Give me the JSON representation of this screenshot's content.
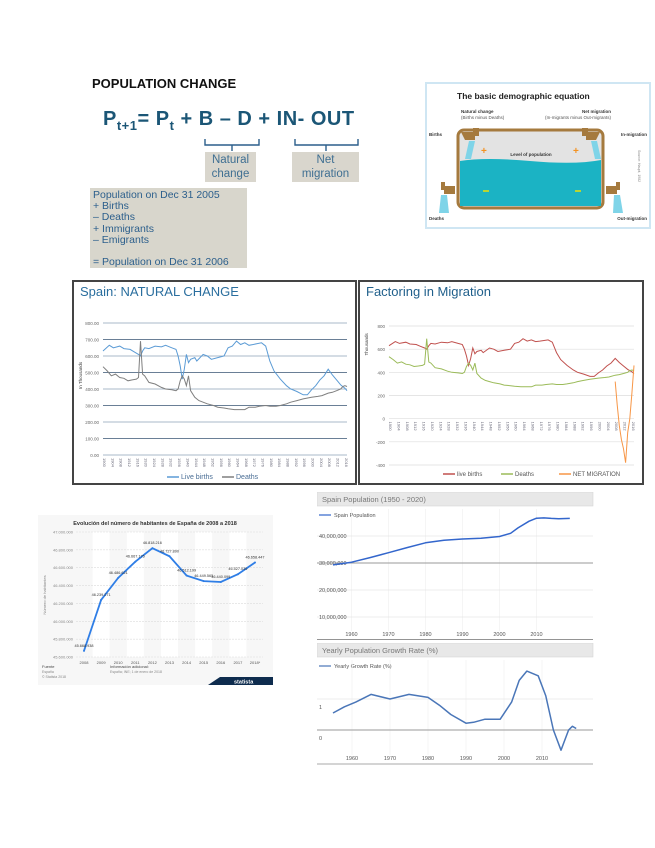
{
  "heading": "POPULATION CHANGE",
  "equation": {
    "p_next": "P",
    "sub_next": "t+1",
    "eq": "= ",
    "p_t": "P",
    "sub_t": "t",
    "rest": " + B – D + IN- OUT"
  },
  "labels": {
    "natural": [
      "Natural",
      "change"
    ],
    "net": [
      "Net",
      "migration"
    ]
  },
  "population_box": [
    "Population on Dec 31 2005",
    "+ Births",
    "– Deaths",
    "+ Immigrants",
    "– Emigrants",
    "",
    "= Population on Dec 31 2006"
  ],
  "demographic_figure": {
    "title": "The basic demographic equation",
    "natural_change": "Natural change",
    "natural_sub": "(Births minus Deaths)",
    "net_migration": "Net migration",
    "net_sub": "(In-migrants minus Out-migrants)",
    "births": "Births",
    "in_migration": "In-migration",
    "deaths": "Deaths",
    "out_migration": "Out-migration",
    "level": "Level of population",
    "source": "Source: Haupt, 1982",
    "colors": {
      "water": "#1bb3c4",
      "pipe": "#a57a3e",
      "plus": "#f39221",
      "minus": "#b6d534"
    }
  },
  "chart_data": [
    {
      "type": "line",
      "title": "Spain: NATURAL CHANGE",
      "ylabel": "In Thousands",
      "ylim": [
        0,
        800
      ],
      "yticks": [
        0,
        100,
        200,
        300,
        400,
        500,
        600,
        700,
        800
      ],
      "ytick_labels": [
        "0.00",
        "100.00",
        "200.00",
        "300.00",
        "400.00",
        "500.00",
        "600.00",
        "700.00",
        "800.00"
      ],
      "xlim": [
        1900,
        2017
      ],
      "xtick_labels": [
        "1900",
        "1904",
        "1908",
        "1912",
        "1916",
        "1920",
        "1924",
        "1928",
        "1932",
        "1936",
        "1940",
        "1944",
        "1948",
        "1952",
        "1956",
        "1960",
        "1964",
        "1968",
        "1972",
        "1976",
        "1980",
        "1984",
        "1988",
        "1992",
        "1996",
        "2000",
        "2004",
        "2008",
        "2012",
        "2016"
      ],
      "grid": true,
      "legend": "bottom",
      "series": [
        {
          "name": "Live births",
          "color": "#5b9bd5",
          "x": [
            1900,
            1903,
            1905,
            1908,
            1910,
            1913,
            1915,
            1917,
            1918,
            1919,
            1920,
            1922,
            1925,
            1928,
            1930,
            1933,
            1935,
            1936,
            1937,
            1938,
            1939,
            1940,
            1941,
            1942,
            1944,
            1945,
            1948,
            1950,
            1952,
            1955,
            1958,
            1960,
            1962,
            1964,
            1966,
            1968,
            1970,
            1972,
            1974,
            1976,
            1978,
            1980,
            1982,
            1985,
            1988,
            1990,
            1993,
            1996,
            1998,
            2000,
            2002,
            2004,
            2006,
            2008,
            2010,
            2012,
            2014,
            2016,
            2017
          ],
          "y": [
            630,
            665,
            650,
            660,
            645,
            640,
            625,
            610,
            600,
            630,
            650,
            645,
            660,
            655,
            665,
            650,
            640,
            600,
            540,
            460,
            520,
            610,
            560,
            580,
            590,
            570,
            610,
            600,
            580,
            590,
            600,
            650,
            660,
            690,
            670,
            680,
            665,
            670,
            675,
            680,
            660,
            570,
            510,
            460,
            420,
            400,
            385,
            365,
            365,
            395,
            420,
            455,
            480,
            520,
            485,
            455,
            425,
            405,
            390
          ]
        },
        {
          "name": "Deaths",
          "color": "#7f7f7f",
          "x": [
            1900,
            1902,
            1904,
            1906,
            1908,
            1910,
            1912,
            1914,
            1916,
            1917,
            1918,
            1919,
            1920,
            1922,
            1925,
            1928,
            1930,
            1933,
            1935,
            1936,
            1937,
            1938,
            1939,
            1940,
            1941,
            1942,
            1944,
            1946,
            1948,
            1950,
            1953,
            1955,
            1958,
            1960,
            1963,
            1965,
            1968,
            1970,
            1973,
            1975,
            1978,
            1980,
            1983,
            1985,
            1988,
            1990,
            1993,
            1996,
            2000,
            2003,
            2005,
            2008,
            2010,
            2012,
            2014,
            2015,
            2016,
            2017
          ],
          "y": [
            535,
            510,
            480,
            490,
            470,
            465,
            450,
            455,
            460,
            470,
            690,
            490,
            480,
            440,
            430,
            410,
            400,
            395,
            390,
            400,
            450,
            480,
            460,
            420,
            480,
            390,
            350,
            330,
            320,
            310,
            300,
            290,
            285,
            280,
            275,
            275,
            275,
            290,
            290,
            295,
            300,
            295,
            295,
            300,
            310,
            320,
            330,
            340,
            350,
            355,
            360,
            375,
            380,
            390,
            400,
            415,
            420,
            415
          ]
        },
        {
          "name": "",
          "color": "#7f7f7f",
          "x": [],
          "y": []
        }
      ]
    },
    {
      "type": "line",
      "title": "Factoring in Migration",
      "ylabel": "Thousands",
      "ylim": [
        -400,
        800
      ],
      "yticks": [
        -400,
        -200,
        0,
        200,
        400,
        600,
        800
      ],
      "ytick_labels": [
        "-400",
        "-200",
        "0",
        "200",
        "400",
        "600",
        "800"
      ],
      "xlim": [
        1900,
        2017
      ],
      "xtick_labels": [
        "1900",
        "1904",
        "1908",
        "1912",
        "1916",
        "1920",
        "1924",
        "1928",
        "1932",
        "1936",
        "1940",
        "1944",
        "1948",
        "1952",
        "1956",
        "1960",
        "1964",
        "1968",
        "1972",
        "1976",
        "1980",
        "1984",
        "1988",
        "1992",
        "1996",
        "2000",
        "2004",
        "2008",
        "2012",
        "2016"
      ],
      "grid": true,
      "legend": "bottom",
      "series": [
        {
          "name": "live births",
          "color": "#c0504d",
          "x": [
            1900,
            1903,
            1905,
            1908,
            1910,
            1913,
            1915,
            1917,
            1918,
            1919,
            1920,
            1922,
            1925,
            1928,
            1930,
            1933,
            1935,
            1936,
            1937,
            1938,
            1939,
            1940,
            1941,
            1942,
            1944,
            1945,
            1948,
            1950,
            1952,
            1955,
            1958,
            1960,
            1962,
            1964,
            1966,
            1968,
            1970,
            1972,
            1974,
            1976,
            1978,
            1980,
            1982,
            1985,
            1988,
            1990,
            1993,
            1996,
            1998,
            2000,
            2002,
            2004,
            2006,
            2008,
            2010,
            2012,
            2014,
            2016,
            2017
          ],
          "y": [
            630,
            665,
            650,
            660,
            645,
            640,
            625,
            610,
            600,
            630,
            650,
            645,
            660,
            655,
            665,
            650,
            640,
            600,
            540,
            460,
            520,
            610,
            560,
            580,
            590,
            570,
            610,
            600,
            580,
            590,
            600,
            650,
            660,
            690,
            670,
            680,
            665,
            670,
            675,
            680,
            660,
            570,
            510,
            460,
            420,
            400,
            385,
            365,
            365,
            395,
            420,
            455,
            480,
            520,
            485,
            455,
            425,
            405,
            390
          ]
        },
        {
          "name": "Deaths",
          "color": "#9bbb59",
          "x": [
            1900,
            1902,
            1904,
            1906,
            1908,
            1910,
            1912,
            1914,
            1916,
            1917,
            1918,
            1919,
            1920,
            1922,
            1925,
            1928,
            1930,
            1933,
            1935,
            1936,
            1937,
            1938,
            1939,
            1940,
            1941,
            1942,
            1944,
            1946,
            1948,
            1950,
            1953,
            1955,
            1958,
            1960,
            1963,
            1965,
            1968,
            1970,
            1973,
            1975,
            1978,
            1980,
            1983,
            1985,
            1988,
            1990,
            1993,
            1996,
            2000,
            2003,
            2005,
            2008,
            2010,
            2012,
            2014,
            2015,
            2016,
            2017
          ],
          "y": [
            535,
            510,
            480,
            490,
            470,
            465,
            450,
            455,
            460,
            470,
            690,
            490,
            480,
            440,
            430,
            410,
            400,
            395,
            390,
            400,
            450,
            480,
            460,
            420,
            480,
            390,
            350,
            330,
            320,
            310,
            300,
            290,
            285,
            280,
            275,
            275,
            275,
            290,
            290,
            295,
            300,
            295,
            295,
            300,
            310,
            320,
            330,
            340,
            350,
            355,
            360,
            375,
            380,
            390,
            400,
            415,
            420,
            415
          ]
        },
        {
          "name": "NET MIGRATION",
          "color": "#f79646",
          "x": [
            2008,
            2009,
            2010,
            2011,
            2012,
            2013,
            2014,
            2015,
            2016,
            2017
          ],
          "y": [
            320,
            120,
            -60,
            -180,
            -260,
            -380,
            -120,
            0,
            220,
            460
          ]
        }
      ]
    },
    {
      "type": "line",
      "title": "Evolución del número de habitantes de España de 2008 a 2018",
      "ylabel": "Número de habitantes",
      "ylim": [
        45600000,
        47000000
      ],
      "yticks": [
        45600000,
        45800000,
        46000000,
        46200000,
        46400000,
        46600000,
        46800000,
        47000000
      ],
      "ytick_labels": [
        "45.600.000",
        "45.800.000",
        "46.000.000",
        "46.200.000",
        "46.400.000",
        "46.600.000",
        "46.800.000",
        "47.000.000"
      ],
      "categories": [
        "2008",
        "2009",
        "2010",
        "2011",
        "2012",
        "2013",
        "2014",
        "2015",
        "2016",
        "2017",
        "2018*"
      ],
      "values": [
        45668938,
        46239271,
        46486621,
        46667175,
        46818216,
        46727890,
        46512199,
        46449565,
        46440099,
        46527039,
        46658447
      ],
      "data_labels": [
        "45.668.938",
        "46.239.271",
        "46.486.621",
        "46.667.175",
        "46.818.216",
        "46.727.890",
        "46.512.199",
        "46.449.565",
        "46.440.099",
        "46.527.039",
        "46.658.447"
      ],
      "color": "#2f7ee6",
      "footer": {
        "source_title": "Fuente",
        "source": "España",
        "copyright": "© Statista 2018",
        "info_title": "Información adicional:",
        "info": "España; INE; 1 de enero de 2018",
        "logo": "statista"
      }
    },
    {
      "type": "line",
      "title": "Spain Population (1950 - 2020)",
      "xlim": [
        1955,
        2019
      ],
      "ylim": [
        0,
        50000000
      ],
      "yticks": [
        10000000,
        20000000,
        30000000,
        40000000
      ],
      "ytick_labels": [
        "10,000,000",
        "20,000,000",
        "30,000,000",
        "40,000,000"
      ],
      "xticks": [
        1960,
        1970,
        1980,
        1990,
        2000,
        2010
      ],
      "grid": true,
      "legend": "top-left",
      "series": [
        {
          "name": "Spain Population",
          "color": "#3366cc",
          "x": [
            1955,
            1960,
            1965,
            1970,
            1975,
            1980,
            1985,
            1990,
            1995,
            2000,
            2003,
            2005,
            2008,
            2010,
            2012,
            2014,
            2016,
            2019
          ],
          "y": [
            29300000,
            30300000,
            32000000,
            33800000,
            35700000,
            37500000,
            38400000,
            38900000,
            39200000,
            39800000,
            41000000,
            43000000,
            45500000,
            46600000,
            46700000,
            46500000,
            46400000,
            46500000
          ]
        }
      ]
    },
    {
      "type": "line",
      "title": "Yearly Population Growth Rate (%)",
      "xlim": [
        1955,
        2019
      ],
      "ylim": [
        -0.6,
        2.0
      ],
      "yticks": [
        0,
        1
      ],
      "ytick_labels": [
        "0",
        "1"
      ],
      "xticks": [
        1960,
        1970,
        1980,
        1990,
        2000,
        2010
      ],
      "grid": true,
      "legend": "top-left",
      "series": [
        {
          "name": "Yearly Growth Rate (%)",
          "color": "#4a76b8",
          "x": [
            1955,
            1958,
            1961,
            1965,
            1970,
            1975,
            1980,
            1983,
            1986,
            1990,
            1992,
            1995,
            1999,
            2002,
            2004,
            2006,
            2009,
            2011,
            2013,
            2015,
            2017,
            2018,
            2019
          ],
          "y": [
            0.55,
            0.75,
            0.9,
            1.15,
            1.0,
            1.15,
            1.05,
            0.8,
            0.5,
            0.22,
            0.25,
            0.35,
            0.35,
            0.9,
            1.6,
            1.9,
            1.75,
            1.1,
            0.0,
            -0.65,
            0.0,
            0.12,
            0.05
          ]
        }
      ]
    }
  ]
}
